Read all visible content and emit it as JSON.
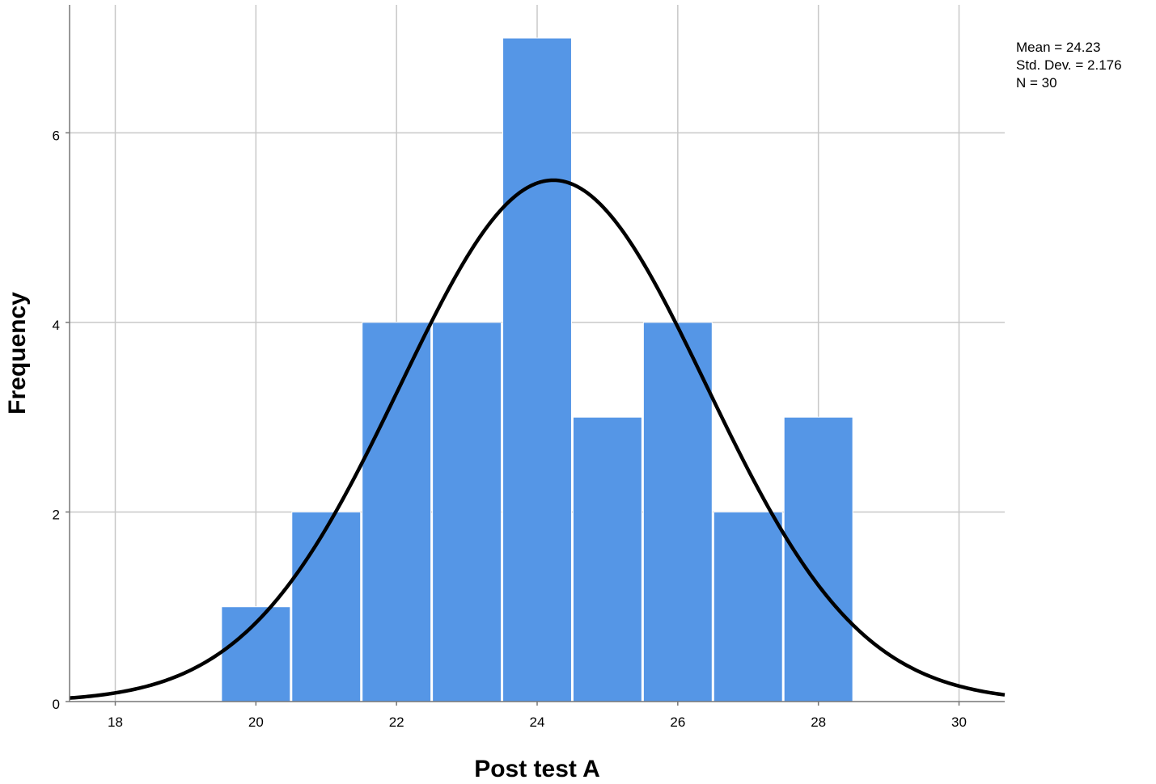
{
  "chart_data": {
    "type": "bar",
    "subtype": "histogram",
    "bins": [
      {
        "x0": 19.5,
        "x1": 20.5,
        "count": 1
      },
      {
        "x0": 20.5,
        "x1": 21.5,
        "count": 2
      },
      {
        "x0": 21.5,
        "x1": 22.5,
        "count": 4
      },
      {
        "x0": 22.5,
        "x1": 23.5,
        "count": 4
      },
      {
        "x0": 23.5,
        "x1": 24.5,
        "count": 7
      },
      {
        "x0": 24.5,
        "x1": 25.5,
        "count": 3
      },
      {
        "x0": 25.5,
        "x1": 26.5,
        "count": 4
      },
      {
        "x0": 26.5,
        "x1": 27.5,
        "count": 2
      },
      {
        "x0": 27.5,
        "x1": 28.5,
        "count": 3
      }
    ],
    "xlim": [
      17.35,
      30.65
    ],
    "ylim": [
      0,
      7.35
    ],
    "xticks": [
      18,
      20,
      22,
      24,
      26,
      28,
      30
    ],
    "yticks": [
      0,
      2,
      4,
      6
    ],
    "xlabel": "Post test A",
    "ylabel": "Frequency",
    "grid": true,
    "bar_color": "#5596e6",
    "curve_color": "#000000",
    "normal_curve": {
      "mean": 24.23,
      "sd": 2.176,
      "n": 30,
      "bin_width": 1
    },
    "stats": [
      "Mean = 24.23",
      "Std. Dev. = 2.176",
      "N = 30"
    ]
  }
}
